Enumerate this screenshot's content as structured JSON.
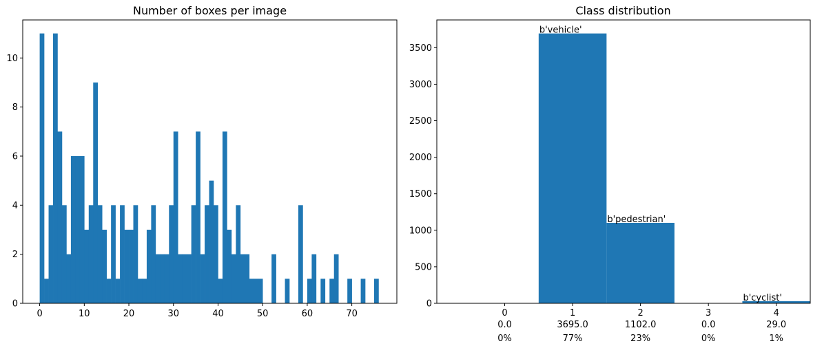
{
  "chart_data": [
    {
      "type": "bar",
      "title": "Number of boxes per image",
      "xlabel": "",
      "ylabel": "",
      "xlim": [
        -3.8,
        80.1
      ],
      "ylim": [
        0,
        11.55
      ],
      "xticks": [
        0,
        10,
        20,
        30,
        40,
        50,
        60,
        70
      ],
      "yticks": [
        0,
        2,
        4,
        6,
        8,
        10
      ],
      "bar_color": "#1f77b4",
      "bin_width": 1.0,
      "bins_start": [
        0,
        1,
        2,
        3,
        4,
        5,
        6,
        7,
        8,
        9,
        10,
        11,
        12,
        13,
        14,
        15,
        16,
        17,
        18,
        19,
        20,
        21,
        22,
        23,
        24,
        25,
        26,
        27,
        28,
        29,
        30,
        31,
        32,
        33,
        34,
        35,
        36,
        37,
        38,
        39,
        40,
        41,
        42,
        43,
        44,
        45,
        46,
        47,
        48,
        49,
        50,
        51,
        52,
        53,
        54,
        55,
        56,
        57,
        58,
        59,
        60,
        61,
        62,
        63,
        64,
        65,
        66,
        67,
        68,
        69,
        70,
        71,
        72,
        73,
        74,
        75
      ],
      "values": [
        11,
        1,
        4,
        11,
        7,
        4,
        2,
        6,
        6,
        6,
        3,
        4,
        9,
        4,
        3,
        1,
        4,
        1,
        4,
        3,
        3,
        4,
        1,
        1,
        3,
        4,
        2,
        2,
        2,
        4,
        7,
        2,
        2,
        2,
        4,
        7,
        2,
        4,
        5,
        4,
        1,
        7,
        3,
        2,
        4,
        2,
        2,
        1,
        1,
        1,
        0,
        0,
        2,
        0,
        0,
        1,
        0,
        0,
        4,
        0,
        1,
        2,
        0,
        1,
        0,
        1,
        2,
        0,
        0,
        1,
        0,
        0,
        1,
        0,
        0,
        1
      ]
    },
    {
      "type": "bar",
      "title": "Class distribution",
      "xlabel": "",
      "ylabel": "",
      "xlim": [
        -1.0,
        4.5
      ],
      "ylim": [
        0,
        3880
      ],
      "yticks": [
        0,
        500,
        1000,
        1500,
        2000,
        2500,
        3000,
        3500
      ],
      "bar_color": "#1f77b4",
      "categories": [
        "0",
        "1",
        "2",
        "3",
        "4"
      ],
      "values": [
        0,
        3695,
        1102,
        0,
        29
      ],
      "count_labels": [
        "0.0",
        "3695.0",
        "1102.0",
        "0.0",
        "29.0"
      ],
      "percent_labels": [
        "0%",
        "77%",
        "23%",
        "0%",
        "1%"
      ],
      "annotations": [
        {
          "category": "1",
          "text": "b'vehicle'"
        },
        {
          "category": "2",
          "text": "b'pedestrian'"
        },
        {
          "category": "4",
          "text": "b'cyclist'"
        }
      ]
    }
  ]
}
